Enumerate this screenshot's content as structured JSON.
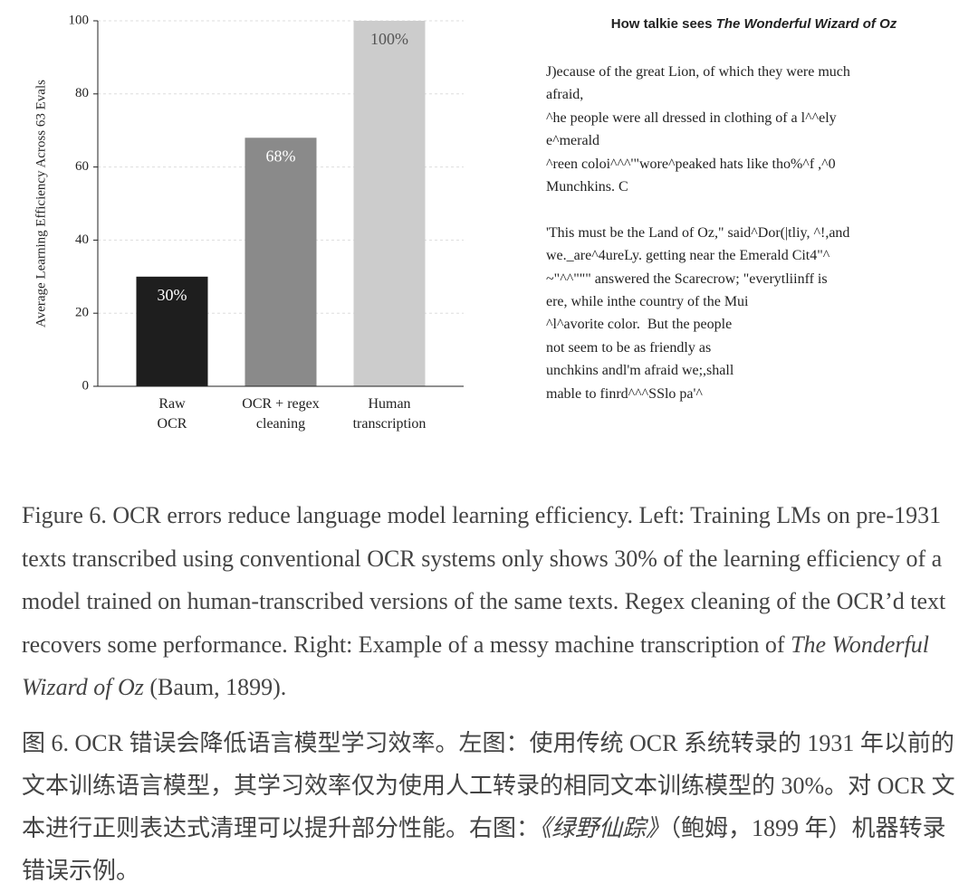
{
  "chart_data": {
    "type": "bar",
    "ylabel": "Average Learning Efficiency Across 63 Evals",
    "categories": [
      "Raw\nOCR",
      "OCR + regex\ncleaning",
      "Human\ntranscription"
    ],
    "values": [
      30,
      68,
      100
    ],
    "value_labels": [
      "30%",
      "68%",
      "100%"
    ],
    "colors": [
      "#1e1e1e",
      "#8a8a8a",
      "#cccccc"
    ],
    "ylim": [
      0,
      100
    ],
    "yticks": [
      0,
      20,
      40,
      60,
      80,
      100
    ],
    "grid": true
  },
  "sample": {
    "title_prefix": "How talkie sees ",
    "title_italic": "The Wonderful Wizard of Oz",
    "paragraphs": [
      [
        "J)ecause of the great Lion, of which they were much",
        "afraid,",
        "^he people were all dressed in clothing of a l^^ely",
        "e^merald",
        "^reen coloi^^^'\"wore^peaked hats like tho%^f ,^0",
        "Munchkins. C"
      ],
      [
        "'This must be the Land of Oz,\" said^Dor(|tliy, ^!,and",
        "we._are^4ureLy. getting near the Emerald Cit4\"^",
        "~\"^^\"\"\" answered the Scarecrow; \"everytliinff is",
        "ere, while inthe country of the Mui",
        "^l^avorite color.  But the people",
        "not seem to be as friendly as",
        "unchkins andl'm afraid we;,shall",
        "mable to finrd^^^SSlo pa'^"
      ]
    ]
  },
  "caption_en": {
    "prefix": "Figure 6. OCR errors reduce language model learning efficiency. Left: Training LMs on pre-1931 texts transcribed using conventional OCR systems only shows 30% of the learning efficiency of a model trained on human-transcribed versions of the same texts. Regex cleaning of the OCR’d text recovers some performance. Right: Example of a messy machine transcription of ",
    "italic": "The Wonderful Wizard of Oz",
    "suffix": " (Baum, 1899)."
  },
  "caption_zh": {
    "prefix": "图 6. OCR 错误会降低语言模型学习效率。左图：使用传统 OCR 系统转录的 1931 年以前的文本训练语言模型，其学习效率仅为使用人工转录的相同文本训练模型的 30%。对 OCR 文本进行正则表达式清理可以提升部分性能。右图：",
    "italic": "《绿野仙踪》",
    "suffix": "（鲍姆，1899 年）机器转录错误示例。"
  }
}
